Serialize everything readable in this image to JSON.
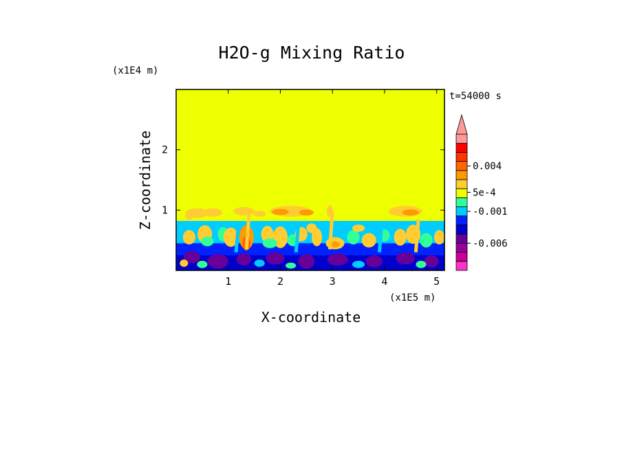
{
  "chart_data": {
    "type": "heatmap",
    "title": "H2O-g Mixing Ratio",
    "xlabel": "X-coordinate",
    "ylabel": "Z-coordinate",
    "x_multiplier": "(x1E5 m)",
    "y_multiplier": "(x1E4 m)",
    "time_label": "t=54000 s",
    "xlim": [
      0,
      5.15
    ],
    "ylim": [
      0,
      3.0
    ],
    "x_ticks": [
      {
        "v": 1,
        "label": "1"
      },
      {
        "v": 2,
        "label": "2"
      },
      {
        "v": 3,
        "label": "3"
      },
      {
        "v": 4,
        "label": "4"
      },
      {
        "v": 5,
        "label": "5"
      }
    ],
    "y_ticks": [
      {
        "v": 1,
        "label": "1"
      },
      {
        "v": 2,
        "label": "2"
      }
    ],
    "colorbar": {
      "levels": [
        "#ff33cc",
        "#cc0099",
        "#990099",
        "#660099",
        "#0000cc",
        "#0022ff",
        "#00ccff",
        "#33ff99",
        "#eeff00",
        "#ffcc33",
        "#ff9900",
        "#ff6600",
        "#ff3300",
        "#ff0000",
        "#ff9999"
      ],
      "labels": [
        {
          "level": 3,
          "text": "-0.006"
        },
        {
          "level": 6.5,
          "text": "-0.001"
        },
        {
          "level": 8.6,
          "text": "5e-4"
        },
        {
          "level": 11.5,
          "text": "0.004"
        }
      ],
      "extend_max_arrow": true
    },
    "regions": {
      "upper_background_color": "#eeff00",
      "boundary_layer_top": 0.82,
      "cyan_band_top": 0.8,
      "mixed_layer_top": 0.45,
      "surface_layer_top": 0.25
    }
  }
}
